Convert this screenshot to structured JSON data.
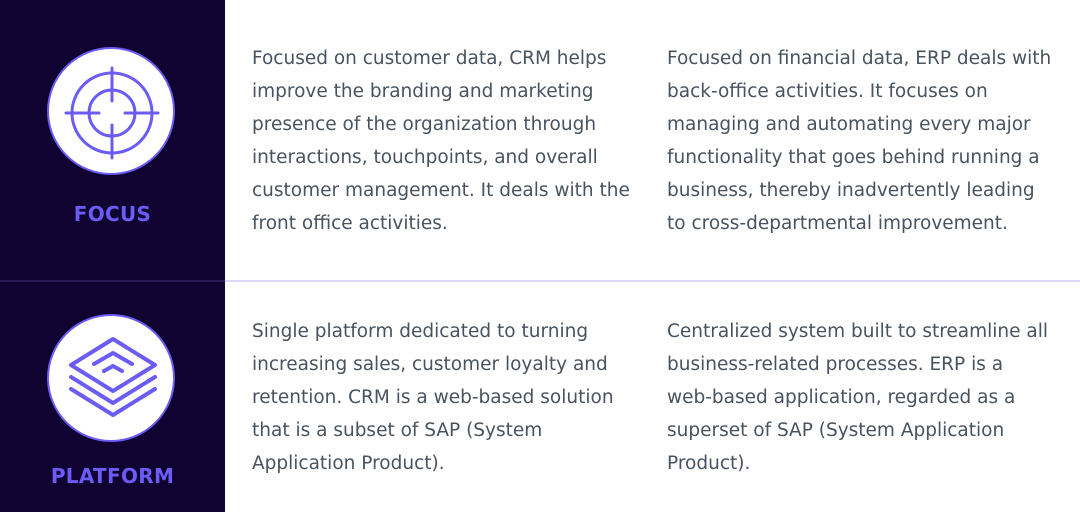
{
  "accent": "#6a5cf4",
  "rows": [
    {
      "label": "FOCUS",
      "icon": "target-icon",
      "crm": "Focused on customer data, CRM helps improve the branding and marketing presence of the organization through interactions, touchpoints, and overall customer management. It deals with the front office activities.",
      "erp": "Focused on financial data, ERP deals with back-office activities. It focuses on managing and automating every major functionality that goes behind running a business, thereby inadvertently leading to cross-departmental improvement."
    },
    {
      "label": "PLATFORM",
      "icon": "layers-icon",
      "crm": "Single platform dedicated to turning increasing sales, customer loyalty and retention. CRM is a web-based solution that is a subset of SAP (System Application Product).",
      "erp": "Centralized system built to streamline all business-related processes. ERP is a web-based application, regarded as a superset of SAP (System Application Product)."
    }
  ]
}
